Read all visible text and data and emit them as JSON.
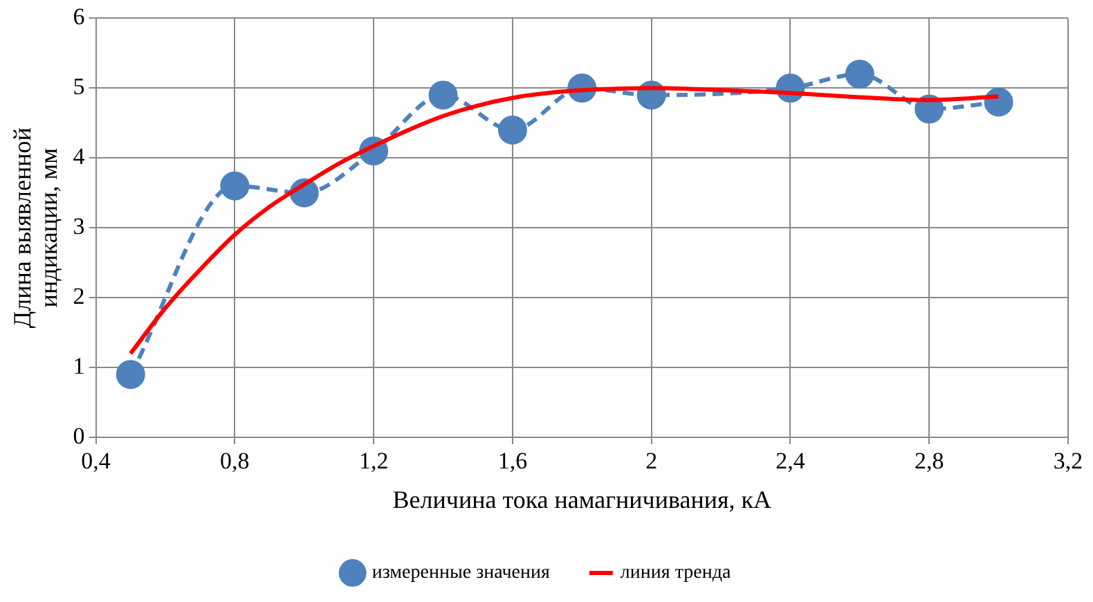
{
  "chart_data": {
    "type": "line",
    "xlabel": "Величина тока намагничивания, кА",
    "ylabel": "Длина выявленной индикации, мм",
    "xlim": [
      0.4,
      3.2
    ],
    "xticks": [
      {
        "value": 0.4,
        "label": "0,4"
      },
      {
        "value": 0.8,
        "label": "0,8"
      },
      {
        "value": 1.2,
        "label": "1,2"
      },
      {
        "value": 1.6,
        "label": "1,6"
      },
      2,
      {
        "value": 2.4,
        "label": "2,4"
      },
      {
        "value": 2.8,
        "label": "2,8"
      },
      {
        "value": 3.2,
        "label": "3,2"
      }
    ],
    "ylim": [
      0,
      6
    ],
    "yticks": [
      0,
      1,
      2,
      3,
      4,
      5,
      6
    ],
    "grid": true,
    "legend": "bottom",
    "series": [
      {
        "name": "измеренные значения",
        "color": "#4f81bd",
        "marker": "circle",
        "line_style": "dashed",
        "x": [
          0.5,
          0.8,
          1.0,
          1.2,
          1.4,
          1.6,
          1.8,
          2.0,
          2.4,
          2.6,
          2.8,
          3.0
        ],
        "values": [
          0.9,
          3.6,
          3.5,
          4.1,
          4.9,
          4.4,
          5.0,
          4.9,
          5.0,
          5.2,
          4.7,
          4.8
        ]
      },
      {
        "name": "линия тренда",
        "color": "#ff0000",
        "marker": "none",
        "line_style": "solid",
        "x": [
          0.5,
          0.6,
          0.7,
          0.8,
          0.9,
          1.0,
          1.1,
          1.2,
          1.3,
          1.4,
          1.5,
          1.6,
          1.7,
          1.8,
          1.9,
          2.0,
          2.2,
          2.4,
          2.6,
          2.8,
          3.0
        ],
        "values": [
          1.2,
          1.85,
          2.4,
          2.9,
          3.3,
          3.62,
          3.92,
          4.17,
          4.4,
          4.6,
          4.75,
          4.86,
          4.93,
          4.97,
          4.99,
          5.0,
          4.97,
          4.93,
          4.87,
          4.83,
          4.88
        ]
      }
    ]
  }
}
